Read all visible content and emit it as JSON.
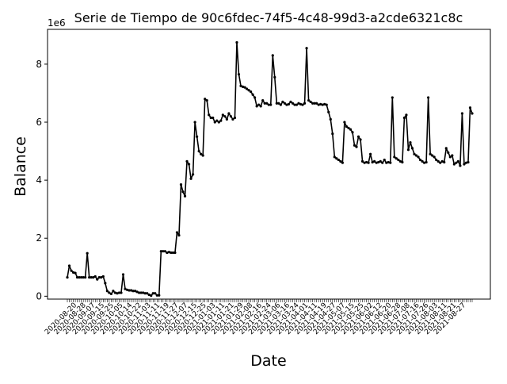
{
  "chart_data": {
    "type": "line",
    "title": "Serie de Tiempo de 90c6fdec-74f5-4c48-99d3-a2cde6321c8c",
    "xlabel": "Date",
    "ylabel": "Balance",
    "y_offset_label": "1e6",
    "ylim": [
      -0.1,
      9.2
    ],
    "y_ticks": [
      0,
      2,
      4,
      6,
      8
    ],
    "grid": false,
    "legend": "none",
    "line_color": "#000000",
    "x_tick_labels": [
      "2020-08-20",
      "2020-08-28",
      "2020-09-07",
      "2020-09-15",
      "2020-09-25",
      "2020-10-05",
      "2020-10-14",
      "2020-10-22",
      "2020-11-03",
      "2020-11-11",
      "2020-11-19",
      "2020-11-27",
      "2020-12-07",
      "2020-12-15",
      "2020-12-25",
      "2021-01-03",
      "2021-01-11",
      "2021-01-21",
      "2021-01-29",
      "2021-02-08",
      "2021-02-16",
      "2021-02-24",
      "2021-03-06",
      "2021-03-16",
      "2021-03-24",
      "2021-04-01",
      "2021-04-11",
      "2021-04-19",
      "2021-04-27",
      "2021-05-07",
      "2021-05-15",
      "2021-05-25",
      "2021-06-02",
      "2021-06-12",
      "2021-06-20",
      "2021-06-28",
      "2021-07-08",
      "2021-07-16",
      "2021-07-26",
      "2021-08-03",
      "2021-08-11",
      "2021-08-21",
      "2021-08-27"
    ],
    "series": [
      {
        "values": [
          0.65,
          1.05,
          0.88,
          0.82,
          0.8,
          0.65,
          0.65,
          0.65,
          0.65,
          0.65,
          1.48,
          0.65,
          0.65,
          0.65,
          0.68,
          0.58,
          0.65,
          0.65,
          0.68,
          0.45,
          0.18,
          0.12,
          0.08,
          0.18,
          0.12,
          0.1,
          0.12,
          0.12,
          0.75,
          0.25,
          0.22,
          0.2,
          0.2,
          0.18,
          0.18,
          0.15,
          0.12,
          0.12,
          0.12,
          0.1,
          0.1,
          0.05,
          0.02,
          0.1,
          0.1,
          0.03,
          0.03,
          1.55,
          1.55,
          1.55,
          1.5,
          1.52,
          1.5,
          1.5,
          1.5,
          2.2,
          2.1,
          3.85,
          3.6,
          3.45,
          4.65,
          4.55,
          4.05,
          4.2,
          6.0,
          5.5,
          5.0,
          4.9,
          4.85,
          6.8,
          6.75,
          6.25,
          6.15,
          6.15,
          6.0,
          6.05,
          6.0,
          6.05,
          6.25,
          6.2,
          6.1,
          6.3,
          6.2,
          6.1,
          6.15,
          8.75,
          7.65,
          7.25,
          7.22,
          7.2,
          7.15,
          7.1,
          7.05,
          6.95,
          6.85,
          6.55,
          6.6,
          6.55,
          6.75,
          6.65,
          6.65,
          6.6,
          6.6,
          8.3,
          7.55,
          6.65,
          6.65,
          6.6,
          6.7,
          6.65,
          6.6,
          6.62,
          6.7,
          6.65,
          6.6,
          6.6,
          6.65,
          6.62,
          6.6,
          6.65,
          8.55,
          6.75,
          6.7,
          6.65,
          6.65,
          6.65,
          6.6,
          6.62,
          6.6,
          6.62,
          6.6,
          6.35,
          6.1,
          5.6,
          4.8,
          4.75,
          4.7,
          4.65,
          4.6,
          6.0,
          5.85,
          5.8,
          5.75,
          5.65,
          5.2,
          5.15,
          5.5,
          5.4,
          4.65,
          4.6,
          4.62,
          4.6,
          4.9,
          4.62,
          4.65,
          4.6,
          4.62,
          4.65,
          4.6,
          4.7,
          4.6,
          4.62,
          4.6,
          6.85,
          4.8,
          4.75,
          4.7,
          4.65,
          4.62,
          6.15,
          6.25,
          5.05,
          5.3,
          5.1,
          4.9,
          4.85,
          4.8,
          4.7,
          4.65,
          4.6,
          4.62,
          6.85,
          4.9,
          4.85,
          4.8,
          4.7,
          4.65,
          4.6,
          4.65,
          4.62,
          5.1,
          4.95,
          4.8,
          4.85,
          4.55,
          4.6,
          4.65,
          4.5,
          6.3,
          4.55,
          4.6,
          4.62,
          6.5,
          6.3
        ]
      }
    ]
  }
}
